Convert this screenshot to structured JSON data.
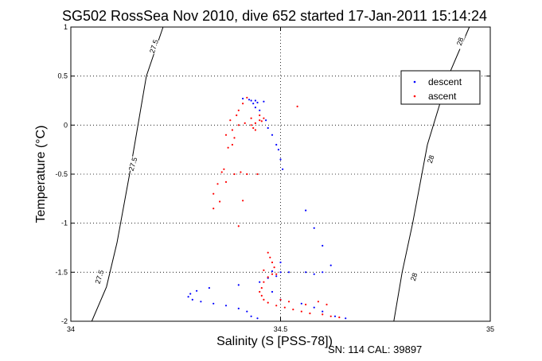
{
  "chart_data": {
    "type": "scatter",
    "title": "SG502 RossSea Nov 2010, dive 652 started 17-Jan-2011 15:14:24",
    "xlabel": "Salinity (S [PSS-78])",
    "ylabel": "Temperature (°C)",
    "xlim": [
      34,
      35
    ],
    "ylim": [
      -2,
      1
    ],
    "x_ticks": [
      34,
      34.5,
      35
    ],
    "x_tick_labels": [
      "34",
      "34.5",
      "35"
    ],
    "y_ticks": [
      -2,
      -1.5,
      -1,
      -0.5,
      0,
      0.5,
      1
    ],
    "y_tick_labels": [
      "-2",
      "-1.5",
      "-1",
      "-0.5",
      "0",
      "0.5",
      "1"
    ],
    "grid": true,
    "legend_position": "top-right",
    "series": [
      {
        "name": "descent",
        "color": "#0000ff",
        "points": [
          [
            34.445,
            -1.97
          ],
          [
            34.43,
            -1.95
          ],
          [
            34.42,
            -1.9
          ],
          [
            34.4,
            -1.87
          ],
          [
            34.37,
            -1.84
          ],
          [
            34.34,
            -1.82
          ],
          [
            34.31,
            -1.8
          ],
          [
            34.29,
            -1.78
          ],
          [
            34.28,
            -1.75
          ],
          [
            34.285,
            -1.72
          ],
          [
            34.3,
            -1.69
          ],
          [
            34.33,
            -1.66
          ],
          [
            34.4,
            -1.63
          ],
          [
            34.45,
            -1.6
          ],
          [
            34.47,
            -1.56
          ],
          [
            34.49,
            -1.54
          ],
          [
            34.5,
            -1.5
          ],
          [
            34.52,
            -1.5
          ],
          [
            34.56,
            -1.5
          ],
          [
            34.6,
            -1.5
          ],
          [
            34.48,
            -1.49
          ],
          [
            34.58,
            -1.52
          ],
          [
            34.62,
            -1.43
          ],
          [
            34.6,
            -1.23
          ],
          [
            34.58,
            -1.05
          ],
          [
            34.56,
            -0.87
          ],
          [
            34.505,
            -0.45
          ],
          [
            34.5,
            -0.35
          ],
          [
            34.495,
            -0.25
          ],
          [
            34.49,
            -0.2
          ],
          [
            34.48,
            -0.1
          ],
          [
            34.47,
            -0.03
          ],
          [
            34.465,
            0.05
          ],
          [
            34.45,
            0.15
          ],
          [
            34.44,
            0.25
          ],
          [
            34.435,
            0.22
          ],
          [
            34.44,
            0.18
          ],
          [
            34.445,
            0.23
          ],
          [
            34.46,
            0.24
          ],
          [
            34.43,
            0.25
          ],
          [
            34.425,
            0.26
          ],
          [
            34.41,
            0.27
          ],
          [
            34.5,
            -1.4
          ],
          [
            34.48,
            -1.7
          ],
          [
            34.5,
            -1.78
          ],
          [
            34.55,
            -1.82
          ],
          [
            34.58,
            -1.86
          ],
          [
            34.6,
            -1.9
          ],
          [
            34.63,
            -1.95
          ],
          [
            34.655,
            -1.97
          ]
        ]
      },
      {
        "name": "ascent",
        "color": "#ff0000",
        "points": [
          [
            34.64,
            -1.96
          ],
          [
            34.62,
            -1.95
          ],
          [
            34.6,
            -1.93
          ],
          [
            34.57,
            -1.92
          ],
          [
            34.55,
            -1.9
          ],
          [
            34.53,
            -1.88
          ],
          [
            34.51,
            -1.86
          ],
          [
            34.49,
            -1.84
          ],
          [
            34.47,
            -1.81
          ],
          [
            34.46,
            -1.78
          ],
          [
            34.455,
            -1.74
          ],
          [
            34.45,
            -1.7
          ],
          [
            34.455,
            -1.66
          ],
          [
            34.46,
            -1.6
          ],
          [
            34.47,
            -1.55
          ],
          [
            34.48,
            -1.52
          ],
          [
            34.46,
            -1.48
          ],
          [
            34.49,
            -1.52
          ],
          [
            34.5,
            -1.78
          ],
          [
            34.52,
            -1.8
          ],
          [
            34.56,
            -1.83
          ],
          [
            34.59,
            -1.8
          ],
          [
            34.61,
            -1.83
          ],
          [
            34.47,
            -1.3
          ],
          [
            34.475,
            -1.35
          ],
          [
            34.48,
            -1.4
          ],
          [
            34.485,
            -1.45
          ],
          [
            34.4,
            -1.03
          ],
          [
            34.41,
            -0.77
          ],
          [
            34.42,
            -0.5
          ],
          [
            34.36,
            -0.48
          ],
          [
            34.39,
            -0.5
          ],
          [
            34.37,
            -0.58
          ],
          [
            34.35,
            -0.6
          ],
          [
            34.34,
            -0.7
          ],
          [
            34.34,
            -0.85
          ],
          [
            34.355,
            -0.78
          ],
          [
            34.37,
            -0.1
          ],
          [
            34.385,
            -0.05
          ],
          [
            34.4,
            0.0
          ],
          [
            34.415,
            0.02
          ],
          [
            34.43,
            0.0
          ],
          [
            34.44,
            0.02
          ],
          [
            34.45,
            0.05
          ],
          [
            34.45,
            0.1
          ],
          [
            34.44,
            -0.05
          ],
          [
            34.43,
            0.07
          ],
          [
            34.42,
            0.28
          ],
          [
            34.41,
            0.22
          ],
          [
            34.4,
            0.15
          ],
          [
            34.395,
            0.1
          ],
          [
            34.38,
            0.05
          ],
          [
            34.455,
            0.04
          ],
          [
            34.46,
            0.07
          ],
          [
            34.435,
            -0.03
          ],
          [
            34.385,
            -0.2
          ],
          [
            34.375,
            -0.23
          ],
          [
            34.39,
            -0.13
          ],
          [
            34.54,
            0.19
          ],
          [
            34.445,
            -0.5
          ],
          [
            34.405,
            -0.48
          ],
          [
            34.365,
            -0.45
          ]
        ]
      }
    ],
    "contours": [
      {
        "label": "27.5",
        "points": [
          [
            34.22,
            1.0
          ],
          [
            34.18,
            0.5
          ],
          [
            34.14,
            -0.5
          ],
          [
            34.11,
            -1.2
          ],
          [
            34.085,
            -1.65
          ],
          [
            34.05,
            -2.0
          ]
        ]
      },
      {
        "label": "28",
        "points": [
          [
            34.95,
            1.0
          ],
          [
            34.9,
            0.5
          ],
          [
            34.85,
            -0.2
          ],
          [
            34.815,
            -1.0
          ],
          [
            34.79,
            -1.5
          ],
          [
            34.77,
            -2.0
          ]
        ]
      }
    ],
    "contour_label_positions": [
      {
        "label": "27.5",
        "x": 34.2,
        "y": 0.8
      },
      {
        "label": "27.5",
        "x": 34.15,
        "y": -0.4
      },
      {
        "label": "27.5",
        "x": 34.07,
        "y": -1.55
      },
      {
        "label": "28",
        "x": 34.93,
        "y": 0.85
      },
      {
        "label": "28",
        "x": 34.86,
        "y": -0.35
      },
      {
        "label": "28",
        "x": 34.82,
        "y": -1.55
      }
    ]
  },
  "footer": {
    "text": "SN: 114  CAL: 39897"
  }
}
